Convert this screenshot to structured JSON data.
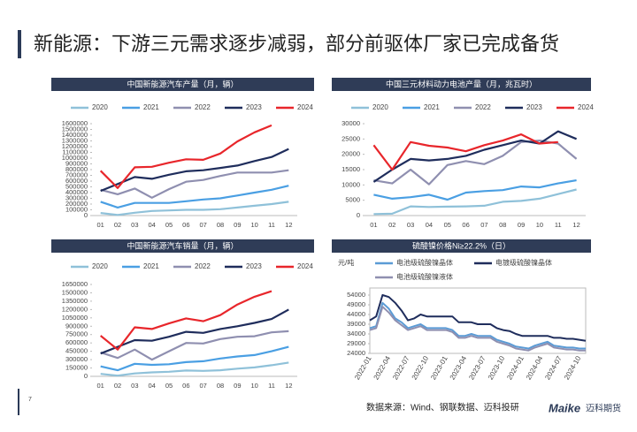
{
  "title": "新能源：下游三元需求逐步减弱，部分前驱体厂家已完成备货",
  "source": "数据来源：Wind、钢联数据、迈科投研",
  "logo": {
    "brand": "Maike",
    "name": "迈科期货"
  },
  "page_number": "7",
  "chart_data": [
    {
      "type": "line",
      "title": "中国新能源汽车产量（月，辆）",
      "categories": [
        "01",
        "02",
        "03",
        "04",
        "05",
        "06",
        "07",
        "08",
        "09",
        "10",
        "11",
        "12"
      ],
      "ylim": [
        0,
        1600000
      ],
      "yticks": [
        0,
        100000,
        200000,
        300000,
        400000,
        500000,
        600000,
        700000,
        800000,
        900000,
        1000000,
        1100000,
        1200000,
        1300000,
        1400000,
        1500000,
        1600000
      ],
      "series": [
        {
          "name": "2020",
          "color": "#8fc1d9",
          "values": [
            45000,
            10000,
            50000,
            80000,
            90000,
            100000,
            100000,
            110000,
            140000,
            170000,
            200000,
            240000
          ]
        },
        {
          "name": "2021",
          "color": "#4a9fe3",
          "values": [
            240000,
            140000,
            220000,
            220000,
            220000,
            250000,
            280000,
            300000,
            350000,
            400000,
            450000,
            520000
          ]
        },
        {
          "name": "2022",
          "color": "#8f8fb0",
          "values": [
            450000,
            370000,
            470000,
            310000,
            460000,
            590000,
            620000,
            690000,
            750000,
            750000,
            750000,
            790000
          ]
        },
        {
          "name": "2023",
          "color": "#1f2d5c",
          "values": [
            430000,
            550000,
            670000,
            640000,
            710000,
            770000,
            790000,
            830000,
            870000,
            950000,
            1020000,
            1160000
          ]
        },
        {
          "name": "2024",
          "color": "#e8262b",
          "values": [
            780000,
            480000,
            840000,
            850000,
            920000,
            980000,
            970000,
            1080000,
            1290000,
            1450000,
            1570000,
            null
          ]
        }
      ]
    },
    {
      "type": "line",
      "title": "中国三元材料动力电池产量（月，兆瓦时）",
      "categories": [
        "01",
        "02",
        "03",
        "04",
        "05",
        "06",
        "07",
        "08",
        "09",
        "10",
        "11",
        "12"
      ],
      "ylim": [
        0,
        30000
      ],
      "yticks": [
        0,
        5000,
        10000,
        15000,
        20000,
        25000,
        30000
      ],
      "series": [
        {
          "name": "2020",
          "color": "#8fc1d9",
          "values": [
            500,
            600,
            3000,
            2800,
            2900,
            3000,
            3200,
            4500,
            4800,
            5500,
            7000,
            8500
          ]
        },
        {
          "name": "2021",
          "color": "#4a9fe3",
          "values": [
            6800,
            5500,
            6000,
            6800,
            5200,
            7500,
            8000,
            8300,
            9500,
            9200,
            10500,
            11500
          ]
        },
        {
          "name": "2022",
          "color": "#8f8fb0",
          "values": [
            11500,
            10500,
            15000,
            10200,
            16500,
            17800,
            16800,
            19500,
            24000,
            24500,
            23500,
            18500
          ]
        },
        {
          "name": "2023",
          "color": "#1f2d5c",
          "values": [
            11000,
            15000,
            18500,
            18000,
            18500,
            19500,
            21500,
            23000,
            24500,
            23500,
            27500,
            25000
          ]
        },
        {
          "name": "2024",
          "color": "#e8262b",
          "values": [
            23000,
            15000,
            24000,
            22800,
            22200,
            21000,
            23000,
            24500,
            26500,
            23500,
            24000,
            null
          ]
        }
      ]
    },
    {
      "type": "line",
      "title": "中国新能源汽车销量（月，辆）",
      "categories": [
        "01",
        "02",
        "03",
        "04",
        "05",
        "06",
        "07",
        "08",
        "09",
        "10",
        "11",
        "12"
      ],
      "ylim": [
        0,
        1650000
      ],
      "yticks": [
        0,
        150000,
        300000,
        450000,
        600000,
        750000,
        900000,
        1050000,
        1200000,
        1350000,
        1500000,
        1650000
      ],
      "series": [
        {
          "name": "2020",
          "color": "#8fc1d9",
          "values": [
            45000,
            12000,
            53000,
            72000,
            82000,
            104000,
            98000,
            109000,
            138000,
            160000,
            200000,
            248000
          ]
        },
        {
          "name": "2021",
          "color": "#4a9fe3",
          "values": [
            180000,
            110000,
            226000,
            206000,
            217000,
            256000,
            271000,
            321000,
            357000,
            383000,
            450000,
            530000
          ]
        },
        {
          "name": "2022",
          "color": "#8f8fb0",
          "values": [
            430000,
            330000,
            480000,
            300000,
            450000,
            600000,
            590000,
            670000,
            710000,
            720000,
            790000,
            810000
          ]
        },
        {
          "name": "2023",
          "color": "#1f2d5c",
          "values": [
            410000,
            530000,
            650000,
            640000,
            710000,
            800000,
            780000,
            850000,
            900000,
            960000,
            1030000,
            1200000
          ]
        },
        {
          "name": "2024",
          "color": "#e8262b",
          "values": [
            730000,
            480000,
            880000,
            850000,
            950000,
            1040000,
            990000,
            1100000,
            1290000,
            1430000,
            1530000,
            null
          ]
        }
      ]
    },
    {
      "type": "line",
      "title": "硫酸镍价格Ni≥22.2%（日）",
      "y_label": "元/吨",
      "categories": [
        "2022-01",
        null,
        null,
        "2022-04",
        null,
        null,
        "2022-07",
        null,
        null,
        "2022-10",
        null,
        null,
        "2023-01",
        null,
        null,
        "2023-04",
        null,
        null,
        "2023-07",
        null,
        null,
        "2023-10",
        null,
        null,
        "2024-01",
        null,
        null,
        "2024-04",
        null,
        null,
        "2024-07",
        null,
        null,
        "2024-10",
        null
      ],
      "ylim": [
        24000,
        54000
      ],
      "yticks": [
        24000,
        29000,
        34000,
        39000,
        44000,
        49000,
        54000
      ],
      "series": [
        {
          "name": "电池级硫酸镍晶体",
          "color": "#5b9bd5",
          "values": [
            37000,
            38000,
            50000,
            47000,
            42000,
            40000,
            37000,
            38000,
            39000,
            37000,
            37000,
            37000,
            37000,
            36000,
            33000,
            33000,
            34000,
            33000,
            33000,
            33000,
            31000,
            30000,
            29000,
            27500,
            27000,
            26500,
            28000,
            29000,
            30000,
            28000,
            27500,
            27000,
            27000,
            26500,
            26500
          ]
        },
        {
          "name": "电镀级硫酸镍晶体",
          "color": "#1f2d5c",
          "values": [
            41000,
            43000,
            54000,
            53000,
            50000,
            46000,
            41000,
            42000,
            44000,
            43000,
            43000,
            43000,
            43000,
            43000,
            40000,
            40000,
            40000,
            39000,
            39000,
            39000,
            37000,
            36000,
            35500,
            34000,
            33000,
            33000,
            33000,
            33000,
            33000,
            32000,
            32000,
            31500,
            31500,
            31000,
            30500
          ]
        },
        {
          "name": "电池级硫酸镍液体",
          "color": "#8f8fb0",
          "values": [
            36000,
            37000,
            48000,
            45000,
            41000,
            38500,
            36000,
            37000,
            38000,
            36000,
            36000,
            36000,
            36000,
            35000,
            32000,
            32000,
            33000,
            32000,
            32000,
            32000,
            30000,
            29000,
            28000,
            26500,
            26000,
            25500,
            27000,
            28000,
            29000,
            27000,
            26500,
            26000,
            26000,
            25500,
            25500
          ]
        }
      ]
    }
  ]
}
